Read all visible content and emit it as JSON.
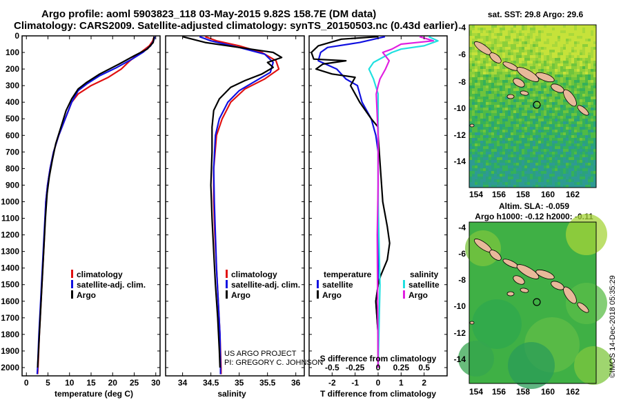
{
  "title": {
    "line1": "Argo profile: aoml 5903823_118 03-May-2015 9.82S 158.7E (DM data)",
    "line2": "Climatology: CARS2009. Satellite-adjusted climatology: synTS_20150503.nc (0.43d earlier)"
  },
  "colors": {
    "climatology": "#e01010",
    "satellite": "#1010e0",
    "argo": "#000000",
    "argo_salinity": "#e020e0",
    "satellite_salinity": "#20e0e0"
  },
  "chart_data": [
    {
      "type": "line",
      "name": "temperature-profile",
      "xlabel": "temperature (deg C)",
      "ylabel": "",
      "xlim": [
        -1,
        31
      ],
      "ylim": [
        2050,
        0
      ],
      "xticks": [
        "0",
        "5",
        "10",
        "15",
        "20",
        "25",
        "30"
      ],
      "yticks": [
        "0",
        "100",
        "200",
        "300",
        "400",
        "500",
        "600",
        "700",
        "800",
        "900",
        "1000",
        "1100",
        "1200",
        "1300",
        "1400",
        "1500",
        "1600",
        "1700",
        "1800",
        "1900",
        "2000"
      ],
      "legend": [
        "climatology",
        "satellite-adj. clim.",
        "Argo"
      ],
      "series": [
        {
          "name": "climatology",
          "points": [
            [
              29.6,
              5
            ],
            [
              29.3,
              30
            ],
            [
              28.5,
              60
            ],
            [
              26.5,
              100
            ],
            [
              24,
              150
            ],
            [
              22,
              200
            ],
            [
              19,
              250
            ],
            [
              15,
              300
            ],
            [
              12,
              350
            ],
            [
              10.5,
              400
            ],
            [
              9,
              500
            ],
            [
              7.5,
              600
            ],
            [
              6.3,
              700
            ],
            [
              5.5,
              800
            ],
            [
              4.9,
              900
            ],
            [
              4.5,
              1000
            ],
            [
              4.2,
              1200
            ],
            [
              3.8,
              1400
            ],
            [
              3.4,
              1600
            ],
            [
              3,
              1800
            ],
            [
              2.7,
              2000
            ],
            [
              2.6,
              2040
            ]
          ]
        },
        {
          "name": "satellite-adj. clim.",
          "points": [
            [
              29.8,
              5
            ],
            [
              29.5,
              30
            ],
            [
              28.8,
              60
            ],
            [
              27,
              100
            ],
            [
              24.5,
              140
            ],
            [
              21,
              190
            ],
            [
              17,
              240
            ],
            [
              14,
              290
            ],
            [
              12,
              330
            ],
            [
              10.5,
              400
            ],
            [
              9,
              500
            ],
            [
              7.5,
              600
            ],
            [
              6.3,
              700
            ],
            [
              5.5,
              800
            ],
            [
              4.9,
              900
            ],
            [
              4.5,
              1000
            ],
            [
              4.1,
              1200
            ],
            [
              3.7,
              1400
            ],
            [
              3.3,
              1600
            ],
            [
              2.9,
              1800
            ],
            [
              2.6,
              2000
            ],
            [
              2.5,
              2040
            ]
          ]
        },
        {
          "name": "Argo",
          "points": [
            [
              29.6,
              5
            ],
            [
              29.4,
              40
            ],
            [
              28,
              80
            ],
            [
              25,
              120
            ],
            [
              21.5,
              170
            ],
            [
              17,
              230
            ],
            [
              14,
              280
            ],
            [
              12,
              320
            ],
            [
              10.5,
              380
            ],
            [
              9.2,
              450
            ],
            [
              8,
              550
            ],
            [
              6.8,
              650
            ],
            [
              6,
              750
            ],
            [
              5.3,
              850
            ],
            [
              4.8,
              950
            ],
            [
              4.4,
              1100
            ],
            [
              4,
              1300
            ],
            [
              3.6,
              1500
            ],
            [
              3.2,
              1700
            ],
            [
              2.8,
              1900
            ],
            [
              2.6,
              2000
            ]
          ]
        }
      ]
    },
    {
      "type": "line",
      "name": "salinity-profile",
      "xlabel": "salinity",
      "xlim": [
        33.7,
        36.15
      ],
      "ylim": [
        2050,
        0
      ],
      "xticks": [
        "34",
        "34.5",
        "35",
        "35.5",
        "36"
      ],
      "legend": [
        "climatology",
        "satellite-adj. clim.",
        "Argo"
      ],
      "series": [
        {
          "name": "climatology",
          "points": [
            [
              34.4,
              5
            ],
            [
              34.6,
              30
            ],
            [
              35,
              60
            ],
            [
              35.4,
              100
            ],
            [
              35.65,
              150
            ],
            [
              35.7,
              200
            ],
            [
              35.45,
              260
            ],
            [
              35.1,
              320
            ],
            [
              34.85,
              400
            ],
            [
              34.7,
              500
            ],
            [
              34.6,
              600
            ],
            [
              34.55,
              800
            ],
            [
              34.55,
              1000
            ],
            [
              34.57,
              1200
            ],
            [
              34.6,
              1400
            ],
            [
              34.63,
              1600
            ],
            [
              34.66,
              1800
            ],
            [
              34.68,
              2000
            ],
            [
              34.68,
              2040
            ]
          ]
        },
        {
          "name": "satellite-adj. clim.",
          "points": [
            [
              34.3,
              5
            ],
            [
              34.5,
              30
            ],
            [
              35,
              70
            ],
            [
              35.45,
              110
            ],
            [
              35.6,
              160
            ],
            [
              35.55,
              220
            ],
            [
              35.3,
              270
            ],
            [
              35,
              330
            ],
            [
              34.8,
              400
            ],
            [
              34.65,
              500
            ],
            [
              34.58,
              600
            ],
            [
              34.55,
              800
            ],
            [
              34.56,
              1000
            ],
            [
              34.58,
              1200
            ],
            [
              34.6,
              1400
            ],
            [
              34.63,
              1600
            ],
            [
              34.66,
              1800
            ],
            [
              34.67,
              2000
            ],
            [
              34.67,
              2040
            ]
          ]
        },
        {
          "name": "Argo",
          "points": [
            [
              34.0,
              5
            ],
            [
              34.4,
              40
            ],
            [
              35.2,
              80
            ],
            [
              35.6,
              100
            ],
            [
              35.75,
              130
            ],
            [
              35.5,
              160
            ],
            [
              35.6,
              190
            ],
            [
              35.4,
              230
            ],
            [
              35.1,
              270
            ],
            [
              34.85,
              310
            ],
            [
              34.65,
              380
            ],
            [
              34.55,
              450
            ],
            [
              34.52,
              550
            ],
            [
              34.52,
              700
            ],
            [
              34.5,
              900
            ],
            [
              34.52,
              1100
            ],
            [
              34.55,
              1300
            ],
            [
              34.58,
              1500
            ],
            [
              34.62,
              1700
            ],
            [
              34.65,
              1900
            ],
            [
              34.66,
              2000
            ]
          ]
        }
      ]
    },
    {
      "type": "line",
      "name": "difference-profile",
      "xlabel": "T difference from climatology",
      "top_label": "S difference from climatology",
      "xlim": [
        -3,
        3
      ],
      "ylim": [
        2050,
        0
      ],
      "xticks": [
        "-2",
        "-1",
        "0",
        "1",
        "2"
      ],
      "top_ticks": [
        "-0.5",
        "-0.25",
        "0",
        "0.25",
        "0.5"
      ],
      "legend": {
        "temperature_title": "temperature",
        "salinity_title": "salinity",
        "temperature": [
          "satellite",
          "Argo"
        ],
        "salinity": [
          "satellite",
          "Argo"
        ]
      },
      "series": [
        {
          "name": "temperature satellite",
          "points": [
            [
              0.3,
              5
            ],
            [
              -0.8,
              40
            ],
            [
              -2.2,
              70
            ],
            [
              -2.5,
              100
            ],
            [
              -2.6,
              150
            ],
            [
              -1.8,
              200
            ],
            [
              -1.4,
              260
            ],
            [
              -0.9,
              300
            ],
            [
              -0.7,
              400
            ],
            [
              -0.3,
              500
            ],
            [
              -0.1,
              600
            ],
            [
              0,
              700
            ],
            [
              0,
              1000
            ],
            [
              0,
              1500
            ],
            [
              -0.1,
              1600
            ],
            [
              0,
              1800
            ],
            [
              0,
              2000
            ]
          ]
        },
        {
          "name": "temperature Argo",
          "points": [
            [
              0,
              5
            ],
            [
              -1.6,
              20
            ],
            [
              -2.6,
              60
            ],
            [
              -2.9,
              100
            ],
            [
              -2.8,
              140
            ],
            [
              -1.4,
              150
            ],
            [
              -2.4,
              170
            ],
            [
              -2.7,
              200
            ],
            [
              -2,
              230
            ],
            [
              -1,
              250
            ],
            [
              -1.2,
              300
            ],
            [
              -1,
              350
            ],
            [
              -0.8,
              400
            ],
            [
              -0.3,
              500
            ],
            [
              0,
              550
            ],
            [
              0,
              600
            ],
            [
              0.2,
              1000
            ],
            [
              0.4,
              1150
            ],
            [
              0.5,
              1250
            ],
            [
              0.4,
              1350
            ],
            [
              0.1,
              1450
            ],
            [
              0,
              1500
            ],
            [
              -0.1,
              1600
            ],
            [
              0,
              1800
            ],
            [
              0,
              2000
            ]
          ]
        },
        {
          "name": "salinity satellite",
          "points": [
            [
              0.55,
              5
            ],
            [
              0.65,
              30
            ],
            [
              0.5,
              60
            ],
            [
              0.25,
              80
            ],
            [
              0.15,
              100
            ],
            [
              -0.05,
              160
            ],
            [
              -0.1,
              200
            ],
            [
              -0.05,
              260
            ],
            [
              0,
              350
            ],
            [
              0,
              500
            ],
            [
              0,
              1000
            ],
            [
              0.02,
              1500
            ],
            [
              0,
              2000
            ]
          ]
        },
        {
          "name": "salinity Argo",
          "points": [
            [
              0.45,
              5
            ],
            [
              0.6,
              30
            ],
            [
              0.25,
              50
            ],
            [
              0.15,
              80
            ],
            [
              0.05,
              100
            ],
            [
              0.12,
              150
            ],
            [
              0.08,
              200
            ],
            [
              0.02,
              260
            ],
            [
              0,
              300
            ],
            [
              -0.02,
              350
            ],
            [
              0,
              600
            ],
            [
              0,
              900
            ],
            [
              -0.01,
              1200
            ],
            [
              0,
              2000
            ]
          ]
        }
      ]
    }
  ],
  "maps": {
    "sst_title": "sat. SST: 29.8 Argo: 29.6",
    "sla_title_line1": "Altim. SLA: -0.059",
    "sla_title_line2": "Argo h1000: -0.12 h2000: -0.11",
    "lon_ticks": [
      "154",
      "156",
      "158",
      "160",
      "162"
    ],
    "lat_ticks": [
      "-4",
      "-6",
      "-8",
      "-10",
      "-12",
      "-14"
    ]
  },
  "credits": {
    "project": "US ARGO PROJECT",
    "pi": "PI: GREGORY C. JOHNSON",
    "imos": "©IMOS 14-Dec-2018 05:35:29"
  }
}
